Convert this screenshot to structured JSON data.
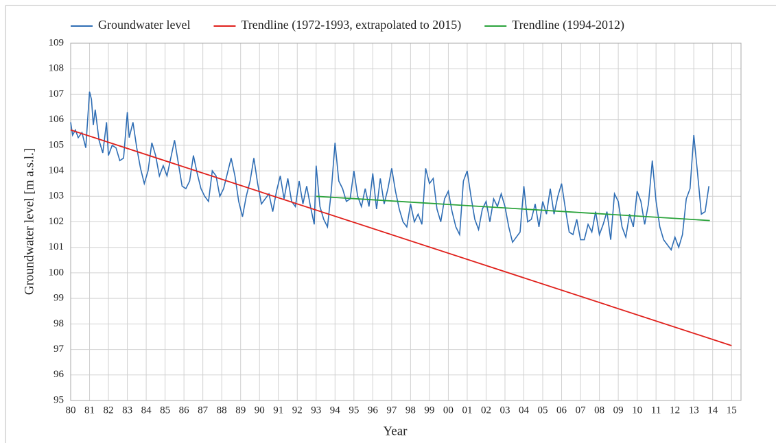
{
  "chart_data": {
    "type": "line",
    "x_label": "Year",
    "y_label": "Groundwater level [m a.s.l.]",
    "xlim": [
      1980,
      2015.5
    ],
    "ylim": [
      95,
      109
    ],
    "xticks": [
      {
        "value": 1980,
        "label": "80"
      },
      {
        "value": 1981,
        "label": "81"
      },
      {
        "value": 1982,
        "label": "82"
      },
      {
        "value": 1983,
        "label": "83"
      },
      {
        "value": 1984,
        "label": "84"
      },
      {
        "value": 1985,
        "label": "85"
      },
      {
        "value": 1986,
        "label": "86"
      },
      {
        "value": 1987,
        "label": "87"
      },
      {
        "value": 1988,
        "label": "88"
      },
      {
        "value": 1989,
        "label": "89"
      },
      {
        "value": 1990,
        "label": "90"
      },
      {
        "value": 1991,
        "label": "91"
      },
      {
        "value": 1992,
        "label": "92"
      },
      {
        "value": 1993,
        "label": "93"
      },
      {
        "value": 1994,
        "label": "94"
      },
      {
        "value": 1995,
        "label": "95"
      },
      {
        "value": 1996,
        "label": "96"
      },
      {
        "value": 1997,
        "label": "97"
      },
      {
        "value": 1998,
        "label": "98"
      },
      {
        "value": 1999,
        "label": "99"
      },
      {
        "value": 2000,
        "label": "00"
      },
      {
        "value": 2001,
        "label": "01"
      },
      {
        "value": 2002,
        "label": "02"
      },
      {
        "value": 2003,
        "label": "03"
      },
      {
        "value": 2004,
        "label": "04"
      },
      {
        "value": 2005,
        "label": "05"
      },
      {
        "value": 2006,
        "label": "06"
      },
      {
        "value": 2007,
        "label": "07"
      },
      {
        "value": 2008,
        "label": "08"
      },
      {
        "value": 2009,
        "label": "09"
      },
      {
        "value": 2010,
        "label": "10"
      },
      {
        "value": 2011,
        "label": "11"
      },
      {
        "value": 2012,
        "label": "12"
      },
      {
        "value": 2013,
        "label": "13"
      },
      {
        "value": 2014,
        "label": "14"
      },
      {
        "value": 2015,
        "label": "15"
      }
    ],
    "yticks": [
      95,
      96,
      97,
      98,
      99,
      100,
      101,
      102,
      103,
      104,
      105,
      106,
      107,
      108,
      109
    ],
    "grid": true,
    "legend": "top",
    "series": [
      {
        "name": "Groundwater level",
        "color": "#2e6db4",
        "x": [
          1980.0,
          1980.1,
          1980.25,
          1980.4,
          1980.6,
          1980.8,
          1981.0,
          1981.1,
          1981.2,
          1981.3,
          1981.5,
          1981.7,
          1981.9,
          1982.0,
          1982.2,
          1982.4,
          1982.6,
          1982.8,
          1983.0,
          1983.1,
          1983.3,
          1983.5,
          1983.7,
          1983.9,
          1984.1,
          1984.3,
          1984.5,
          1984.7,
          1984.9,
          1985.1,
          1985.3,
          1985.5,
          1985.7,
          1985.9,
          1986.1,
          1986.3,
          1986.5,
          1986.7,
          1986.9,
          1987.1,
          1987.3,
          1987.5,
          1987.7,
          1987.9,
          1988.1,
          1988.3,
          1988.5,
          1988.7,
          1988.9,
          1989.1,
          1989.3,
          1989.5,
          1989.7,
          1989.9,
          1990.1,
          1990.3,
          1990.5,
          1990.7,
          1990.9,
          1991.1,
          1991.3,
          1991.5,
          1991.7,
          1991.9,
          1992.1,
          1992.3,
          1992.5,
          1992.7,
          1992.9,
          1993.0,
          1993.2,
          1993.4,
          1993.6,
          1993.8,
          1994.0,
          1994.2,
          1994.4,
          1994.6,
          1994.8,
          1995.0,
          1995.2,
          1995.4,
          1995.6,
          1995.8,
          1996.0,
          1996.2,
          1996.4,
          1996.6,
          1996.8,
          1997.0,
          1997.2,
          1997.4,
          1997.6,
          1997.8,
          1998.0,
          1998.2,
          1998.4,
          1998.6,
          1998.8,
          1999.0,
          1999.2,
          1999.4,
          1999.6,
          1999.8,
          2000.0,
          2000.2,
          2000.4,
          2000.6,
          2000.8,
          2001.0,
          2001.2,
          2001.4,
          2001.6,
          2001.8,
          2002.0,
          2002.2,
          2002.4,
          2002.6,
          2002.8,
          2003.0,
          2003.2,
          2003.4,
          2003.6,
          2003.8,
          2004.0,
          2004.2,
          2004.4,
          2004.6,
          2004.8,
          2005.0,
          2005.2,
          2005.4,
          2005.6,
          2005.8,
          2006.0,
          2006.2,
          2006.4,
          2006.6,
          2006.8,
          2007.0,
          2007.2,
          2007.4,
          2007.6,
          2007.8,
          2008.0,
          2008.2,
          2008.4,
          2008.6,
          2008.8,
          2009.0,
          2009.2,
          2009.4,
          2009.6,
          2009.8,
          2010.0,
          2010.2,
          2010.4,
          2010.6,
          2010.8,
          2011.0,
          2011.2,
          2011.4,
          2011.6,
          2011.8,
          2012.0,
          2012.2,
          2012.4,
          2012.6,
          2012.8,
          2013.0,
          2013.2,
          2013.4,
          2013.6,
          2013.8
        ],
        "values": [
          105.9,
          105.4,
          105.6,
          105.3,
          105.5,
          104.9,
          107.1,
          106.8,
          105.8,
          106.4,
          105.2,
          104.7,
          105.9,
          104.6,
          105.0,
          104.9,
          104.4,
          104.5,
          106.3,
          105.3,
          105.9,
          104.9,
          104.1,
          103.5,
          104.0,
          105.1,
          104.6,
          103.8,
          104.2,
          103.8,
          104.5,
          105.2,
          104.3,
          103.4,
          103.3,
          103.6,
          104.6,
          103.9,
          103.3,
          103.0,
          102.8,
          104.0,
          103.8,
          103.0,
          103.3,
          103.9,
          104.5,
          103.8,
          102.8,
          102.2,
          103.0,
          103.6,
          104.5,
          103.5,
          102.7,
          102.9,
          103.1,
          102.4,
          103.2,
          103.8,
          102.9,
          103.7,
          102.8,
          102.6,
          103.6,
          102.7,
          103.4,
          102.6,
          101.9,
          104.2,
          102.6,
          102.1,
          101.8,
          103.2,
          105.1,
          103.6,
          103.3,
          102.8,
          102.9,
          104.0,
          103.0,
          102.6,
          103.3,
          102.6,
          103.9,
          102.5,
          103.7,
          102.7,
          103.3,
          104.1,
          103.2,
          102.5,
          102.0,
          101.8,
          102.7,
          102.0,
          102.3,
          101.9,
          104.1,
          103.5,
          103.7,
          102.5,
          102.0,
          102.9,
          103.2,
          102.4,
          101.8,
          101.5,
          103.6,
          104.0,
          103.0,
          102.1,
          101.7,
          102.5,
          102.8,
          102.0,
          102.9,
          102.6,
          103.1,
          102.6,
          101.8,
          101.2,
          101.4,
          101.6,
          103.4,
          102.0,
          102.1,
          102.7,
          101.8,
          102.8,
          102.3,
          103.3,
          102.3,
          103.0,
          103.5,
          102.5,
          101.6,
          101.5,
          102.1,
          101.3,
          101.3,
          101.9,
          101.6,
          102.4,
          101.5,
          101.9,
          102.4,
          101.3,
          103.1,
          102.8,
          101.8,
          101.4,
          102.3,
          101.8,
          103.2,
          102.8,
          101.9,
          102.7,
          104.4,
          102.8,
          101.8,
          101.3,
          101.1,
          100.9,
          101.4,
          101.0,
          101.5,
          102.9,
          103.3,
          105.4,
          103.9,
          102.3,
          102.4,
          103.4
        ]
      },
      {
        "name": "Trendline (1972-1993, extrapolated to 2015)",
        "color": "#e0201b",
        "x": [
          1980,
          2015
        ],
        "values": [
          105.6,
          97.15
        ]
      },
      {
        "name": "Trendline (1994-2012)",
        "color": "#2aa33b",
        "x": [
          1993,
          2013.85
        ],
        "values": [
          103.0,
          102.05
        ]
      }
    ]
  }
}
